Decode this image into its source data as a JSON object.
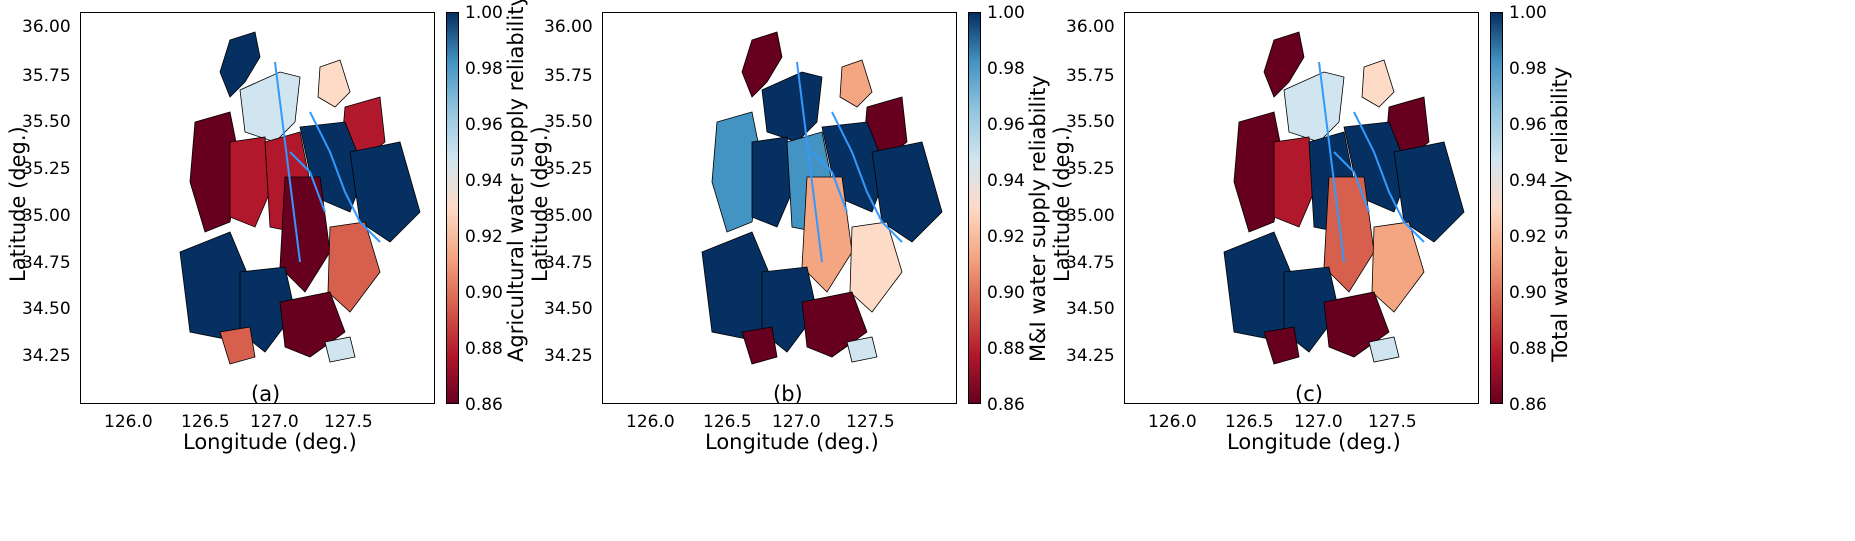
{
  "panels": [
    {
      "id": "a",
      "tag": "(a)",
      "xlabel": "Longitude (deg.)",
      "ylabel": "Latitude (deg.)",
      "colorbar_label": "Agricultural water supply reliability"
    },
    {
      "id": "b",
      "tag": "(b)",
      "xlabel": "Longitude (deg.)",
      "ylabel": "Latitude (deg.)",
      "colorbar_label": "M&I water supply reliability"
    },
    {
      "id": "c",
      "tag": "(c)",
      "xlabel": "Longitude (deg.)",
      "ylabel": "Latitude (deg.)",
      "colorbar_label": "Total water supply reliability"
    }
  ],
  "x_ticks": [
    "126.0",
    "126.5",
    "127.0",
    "127.5"
  ],
  "y_ticks": [
    "36.00",
    "35.75",
    "35.50",
    "35.25",
    "35.00",
    "34.75",
    "34.50",
    "34.25"
  ],
  "colorbar_ticks": [
    "1.00",
    "0.98",
    "0.96",
    "0.94",
    "0.92",
    "0.90",
    "0.88",
    "0.86"
  ],
  "colors": {
    "river": "#3399ff",
    "colormap": [
      "#67001f",
      "#b2182b",
      "#d6604d",
      "#f4a582",
      "#fddbc7",
      "#d1e5f0",
      "#92c5de",
      "#4393c3",
      "#053061"
    ]
  }
}
